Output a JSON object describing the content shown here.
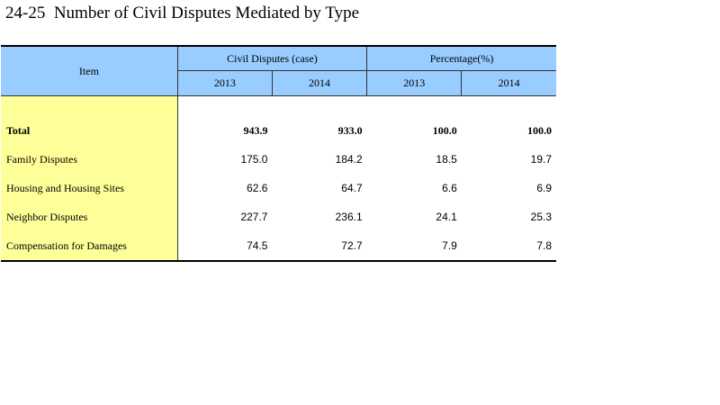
{
  "title": "24-25  Number of Civil Disputes Mediated by Type",
  "table": {
    "item_header": "Item",
    "groups": [
      {
        "label": "Civil Disputes (case)",
        "years": [
          "2013",
          "2014"
        ]
      },
      {
        "label": "Percentage(%)",
        "years": [
          "2013",
          "2014"
        ]
      }
    ],
    "rows": [
      {
        "label": "Total",
        "values": [
          "943.9",
          "933.0",
          "100.0",
          "100.0"
        ]
      },
      {
        "label": "Family Disputes",
        "values": [
          "175.0",
          "184.2",
          "18.5",
          "19.7"
        ]
      },
      {
        "label": "Housing and Housing Sites",
        "values": [
          "62.6",
          "64.7",
          "6.6",
          "6.9"
        ]
      },
      {
        "label": "Neighbor Disputes",
        "values": [
          "227.7",
          "236.1",
          "24.1",
          "25.3"
        ]
      },
      {
        "label": "Compensation for Damages",
        "values": [
          "74.5",
          "72.7",
          "7.9",
          "7.8"
        ]
      }
    ]
  }
}
